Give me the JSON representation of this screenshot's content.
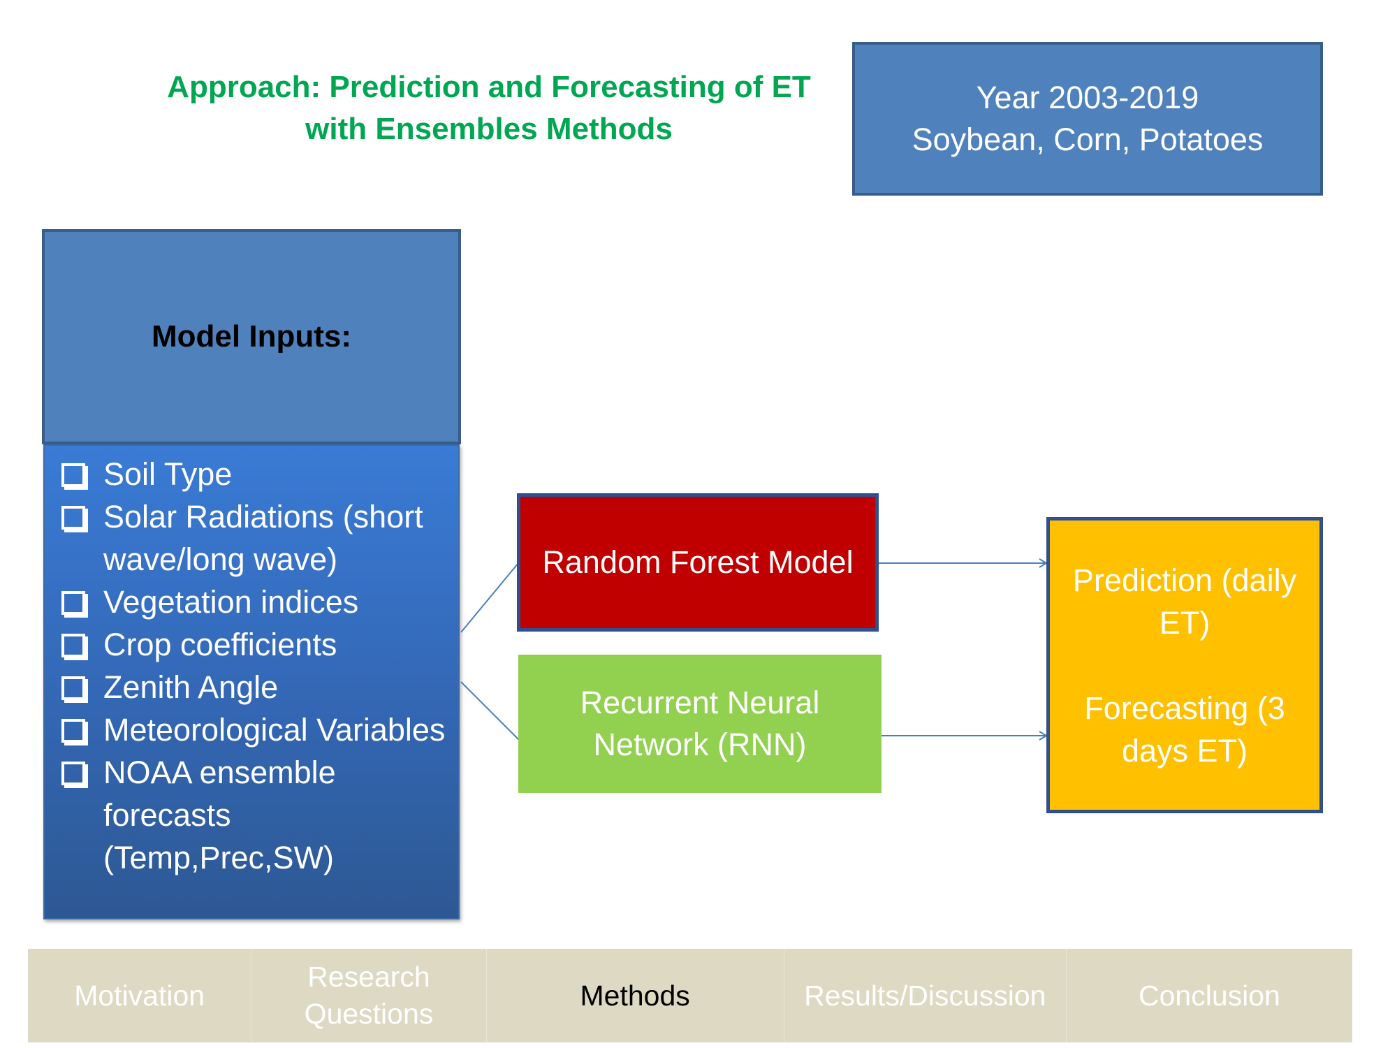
{
  "title": {
    "line1": "Approach: Prediction and Forecasting of ET",
    "line2": "with Ensembles Methods"
  },
  "scope": {
    "line1": "Year 2003-2019",
    "line2": "Soybean, Corn, Potatoes"
  },
  "inputs": {
    "header": "Model Inputs:",
    "items": [
      "Soil Type",
      "Solar Radiations (short wave/long wave)",
      "Vegetation indices",
      "Crop coefficients",
      "Zenith Angle",
      "Meteorological Variables",
      "NOAA ensemble forecasts (Temp,Prec,SW)"
    ]
  },
  "models": {
    "random_forest": "Random Forest Model",
    "rnn_line1": "Recurrent Neural",
    "rnn_line2": "Network (RNN)"
  },
  "output": {
    "prediction_line1": "Prediction (daily",
    "prediction_line2": "ET)",
    "forecast_line1": "Forecasting (3",
    "forecast_line2": "days ET)"
  },
  "nav": {
    "items": [
      {
        "line1": "Motivation",
        "line2": ""
      },
      {
        "line1": "Research",
        "line2": "Questions"
      },
      {
        "line1": "Methods",
        "line2": ""
      },
      {
        "line1": "Results/Discussion",
        "line2": ""
      },
      {
        "line1": "Conclusion",
        "line2": ""
      }
    ],
    "active_index": 2
  },
  "colors": {
    "title": "#00a651",
    "blue_box": "#4f81bd",
    "random_forest": "#c00000",
    "rnn": "#92d050",
    "output": "#ffc000",
    "nav_bar": "#ddd9c3",
    "connector": "#4a7ebb"
  }
}
